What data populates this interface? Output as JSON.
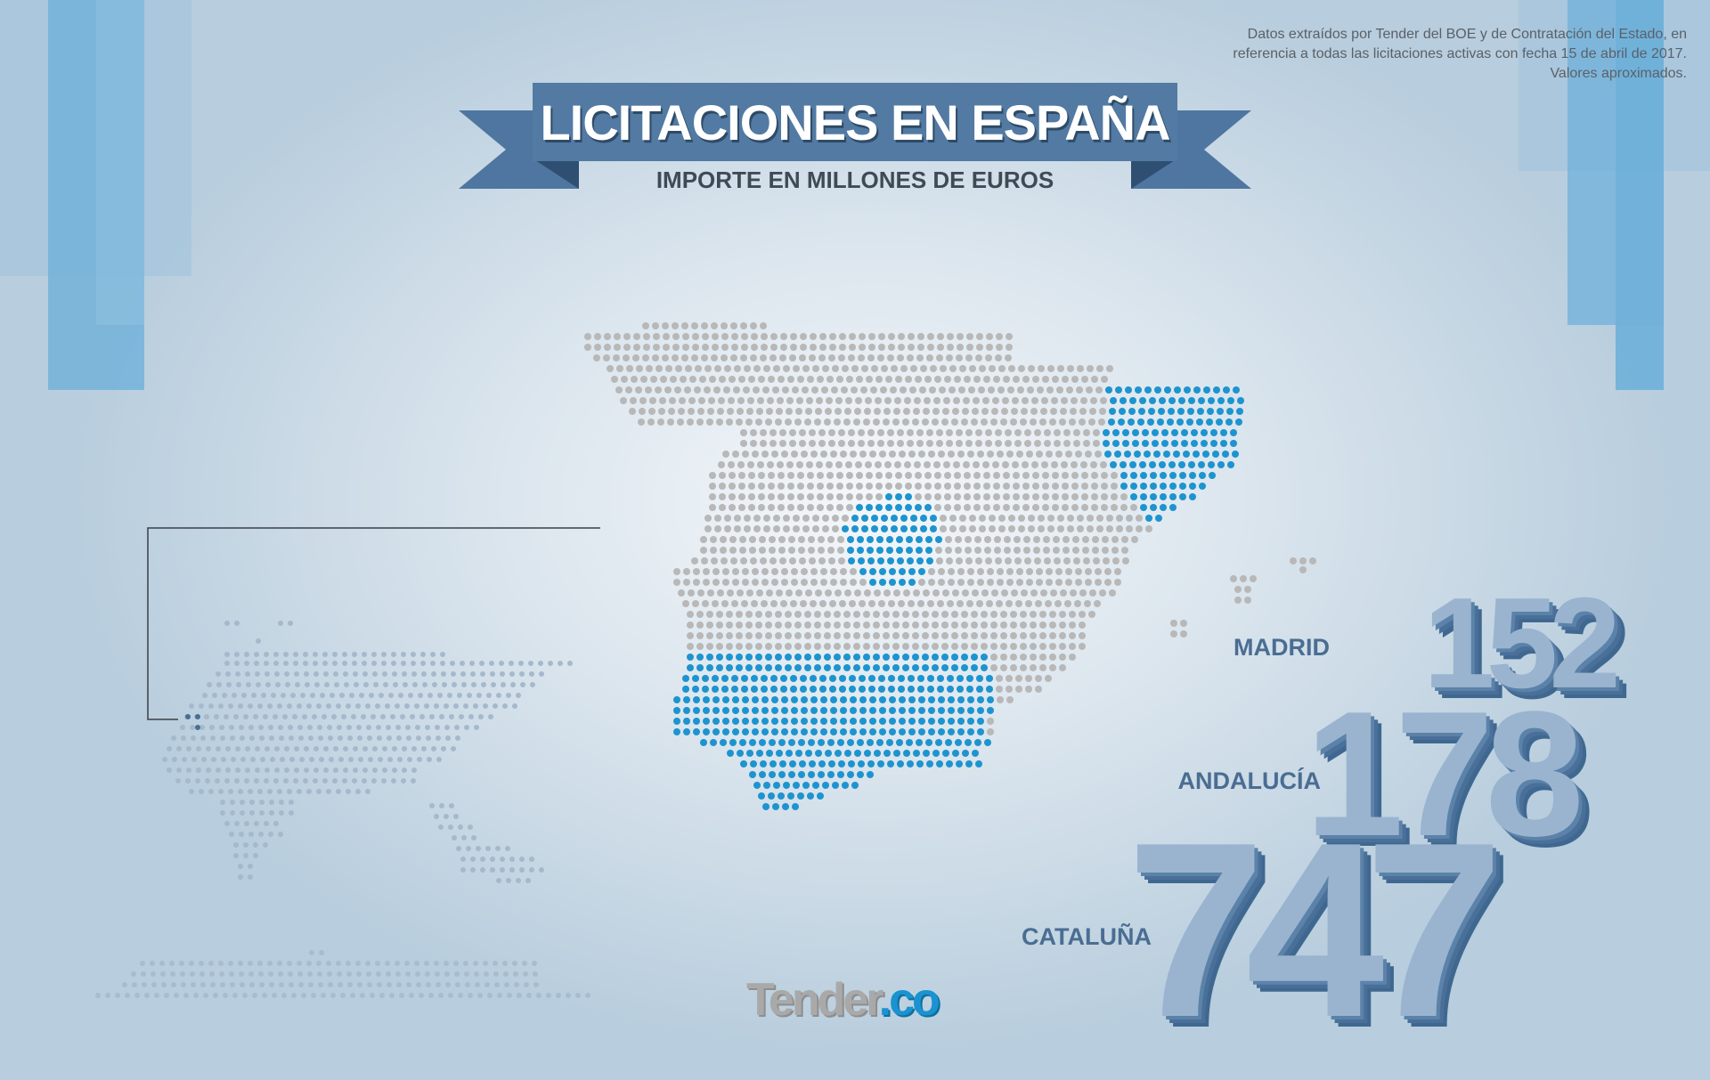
{
  "colors": {
    "accent_blue": "#1d94cf",
    "dot_gray": "#b8b8b8",
    "ribbon": "#527aa3",
    "number_face": "#9ab4cf",
    "label": "#4a6d92"
  },
  "header": {
    "title": "LICITACIONES EN ESPAÑA",
    "subtitle": "IMPORTE EN MILLONES DE EUROS"
  },
  "source_note": "Datos extraídos por Tender del BOE y de Contratación del Estado, en referencia a todas las licitaciones activas con fecha 15 de abril de 2017. Valores aproximados.",
  "regions": [
    {
      "name": "MADRID",
      "value": "152"
    },
    {
      "name": "ANDALUCÍA",
      "value": "178"
    },
    {
      "name": "CATALUÑA",
      "value": "747"
    }
  ],
  "logo": {
    "part1": "Tender",
    "part2": ".co"
  }
}
